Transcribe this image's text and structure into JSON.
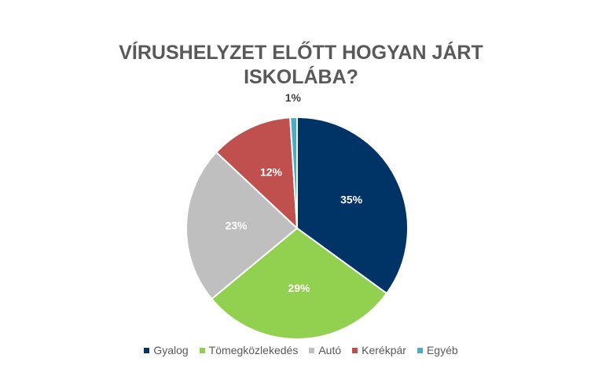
{
  "chart_data": {
    "type": "pie",
    "title": "VÍRUSHELYZET ELŐTT HOGYAN JÁRT ISKOLÁBA?",
    "categories": [
      "Gyalog",
      "Tömegközlekedés",
      "Autó",
      "Kerékpár",
      "Egyéb"
    ],
    "values": [
      35,
      29,
      23,
      12,
      1
    ],
    "value_labels": [
      "35%",
      "29%",
      "23%",
      "12%",
      "1%"
    ],
    "colors": [
      "#003366",
      "#92d050",
      "#bfbfbf",
      "#c0504d",
      "#4bacc6"
    ],
    "legend": "bottom"
  }
}
